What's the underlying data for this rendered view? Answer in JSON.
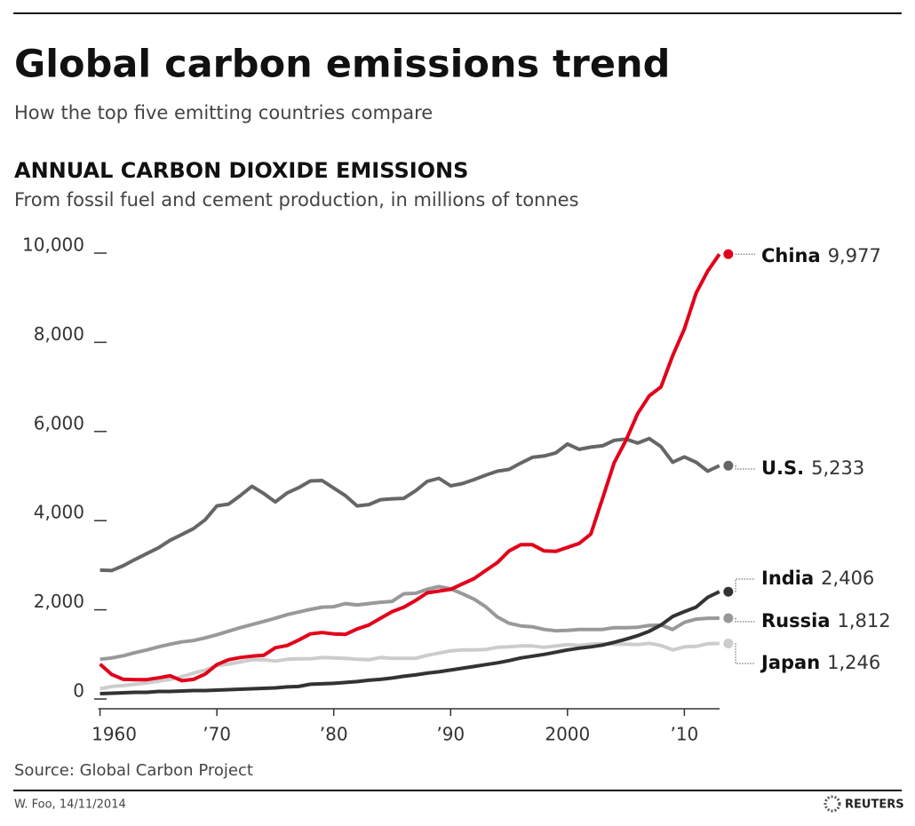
{
  "chart_data": {
    "type": "line",
    "title": "Global carbon emissions trend",
    "subtitle": "How the top five emitting countries compare",
    "section_title": "ANNUAL CARBON DIOXIDE EMISSIONS",
    "section_subtitle": "From fossil fuel and cement production, in millions of tonnes",
    "source": "Source: Global Carbon Project",
    "credit": "W. Foo, 14/11/2014",
    "logo": "REUTERS",
    "x": [
      1960,
      1961,
      1962,
      1963,
      1964,
      1965,
      1966,
      1967,
      1968,
      1969,
      1970,
      1971,
      1972,
      1973,
      1974,
      1975,
      1976,
      1977,
      1978,
      1979,
      1980,
      1981,
      1982,
      1983,
      1984,
      1985,
      1986,
      1987,
      1988,
      1989,
      1990,
      1991,
      1992,
      1993,
      1994,
      1995,
      1996,
      1997,
      1998,
      1999,
      2000,
      2001,
      2002,
      2003,
      2004,
      2005,
      2006,
      2007,
      2008,
      2009,
      2010,
      2011,
      2012,
      2013
    ],
    "xlim": [
      1959.5,
      2014
    ],
    "xticks": [
      1960,
      {
        "value": 1970,
        "label": "’70"
      },
      {
        "value": 1980,
        "label": "’80"
      },
      {
        "value": 1990,
        "label": "’90"
      },
      2000,
      {
        "value": 2010,
        "label": "’10"
      }
    ],
    "ylim": [
      0,
      10000
    ],
    "yticks": [
      0,
      {
        "value": 2000,
        "label": "2,000"
      },
      {
        "value": 4000,
        "label": "4,000"
      },
      {
        "value": 6000,
        "label": "6,000"
      },
      {
        "value": 8000,
        "label": "8,000"
      },
      {
        "value": 10000,
        "label": "10,000"
      }
    ],
    "series": [
      {
        "name": "China",
        "color": "#e2001a",
        "value_labels": {
          "53": "9,977"
        },
        "values": [
          780,
          550,
          440,
          435,
          435,
          475,
          520,
          410,
          440,
          560,
          770,
          880,
          930,
          960,
          980,
          1150,
          1200,
          1320,
          1460,
          1490,
          1460,
          1450,
          1570,
          1660,
          1810,
          1960,
          2060,
          2210,
          2380,
          2420,
          2460,
          2580,
          2700,
          2880,
          3060,
          3320,
          3460,
          3460,
          3320,
          3310,
          3400,
          3490,
          3700,
          4500,
          5300,
          5800,
          6400,
          6800,
          7000,
          7700,
          8300,
          9100,
          9600,
          9977
        ]
      },
      {
        "name": "U.S.",
        "color": "#666666",
        "value_labels": {
          "53": "5,233"
        },
        "values": [
          2890,
          2880,
          2990,
          3130,
          3260,
          3390,
          3560,
          3690,
          3820,
          4020,
          4330,
          4370,
          4560,
          4770,
          4610,
          4420,
          4620,
          4740,
          4890,
          4900,
          4730,
          4560,
          4330,
          4360,
          4470,
          4490,
          4500,
          4670,
          4880,
          4950,
          4780,
          4830,
          4920,
          5020,
          5110,
          5150,
          5290,
          5420,
          5450,
          5520,
          5720,
          5600,
          5650,
          5680,
          5800,
          5830,
          5740,
          5840,
          5660,
          5310,
          5430,
          5310,
          5110,
          5233
        ]
      },
      {
        "name": "India",
        "color": "#333333",
        "value_labels": {
          "53": "2,406"
        },
        "values": [
          120,
          130,
          140,
          150,
          150,
          170,
          170,
          180,
          190,
          190,
          200,
          210,
          220,
          230,
          240,
          250,
          270,
          280,
          330,
          340,
          350,
          370,
          390,
          420,
          440,
          470,
          510,
          540,
          580,
          610,
          650,
          690,
          730,
          770,
          810,
          860,
          920,
          960,
          1000,
          1050,
          1100,
          1140,
          1170,
          1210,
          1270,
          1340,
          1420,
          1520,
          1660,
          1850,
          1960,
          2060,
          2280,
          2406
        ]
      },
      {
        "name": "Russia",
        "color": "#999999",
        "value_labels": {
          "53": "1,812"
        },
        "values": [
          890,
          920,
          970,
          1040,
          1100,
          1170,
          1230,
          1280,
          1310,
          1370,
          1440,
          1520,
          1600,
          1670,
          1740,
          1810,
          1890,
          1950,
          2010,
          2060,
          2070,
          2140,
          2110,
          2140,
          2170,
          2190,
          2360,
          2370,
          2460,
          2520,
          2470,
          2360,
          2240,
          2070,
          1840,
          1700,
          1640,
          1620,
          1560,
          1530,
          1540,
          1560,
          1560,
          1560,
          1600,
          1600,
          1610,
          1650,
          1660,
          1560,
          1720,
          1790,
          1810,
          1812
        ]
      },
      {
        "name": "Japan",
        "color": "#cccccc",
        "value_labels": {
          "53": "1,246"
        },
        "values": [
          230,
          280,
          300,
          330,
          360,
          400,
          440,
          500,
          580,
          650,
          750,
          780,
          830,
          880,
          880,
          850,
          890,
          900,
          900,
          930,
          920,
          910,
          890,
          880,
          930,
          910,
          910,
          910,
          980,
          1030,
          1080,
          1100,
          1100,
          1110,
          1160,
          1170,
          1190,
          1190,
          1160,
          1190,
          1220,
          1200,
          1230,
          1240,
          1230,
          1230,
          1220,
          1250,
          1200,
          1100,
          1170,
          1180,
          1240,
          1246
        ]
      }
    ]
  }
}
